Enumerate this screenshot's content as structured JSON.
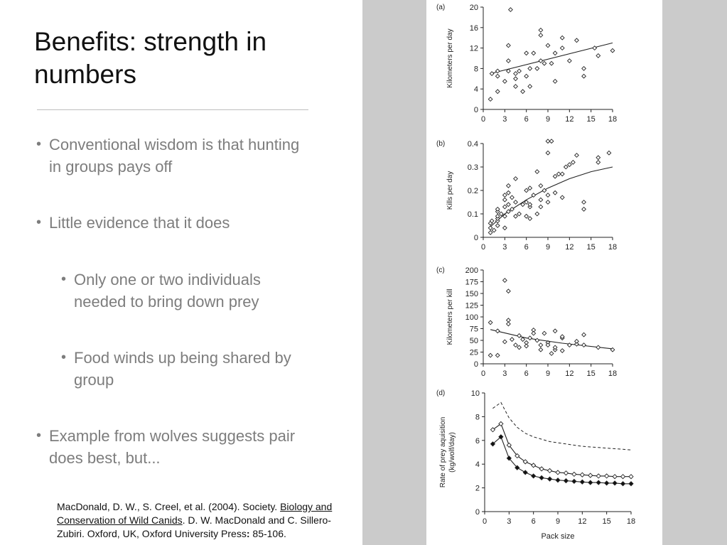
{
  "slide": {
    "title": "Benefits: strength in numbers",
    "bullets": [
      {
        "level": 1,
        "text": "Conventional wisdom is that hunting in groups pays off"
      },
      {
        "level": 1,
        "text": "Little evidence that it does"
      },
      {
        "level": 2,
        "text": "Only one or two individuals needed to bring down prey"
      },
      {
        "level": 2,
        "text": "Food winds up being shared by group"
      },
      {
        "level": 1,
        "text": "Example from wolves suggests pair does best, but..."
      }
    ],
    "bullet_glyph": "•",
    "citation": {
      "pre": "MacDonald, D. W., S. Creel, et al. (2004). Society. ",
      "book": "Biology and Conservation of Wild Canids",
      "post_a": ". D. W. MacDonald and C. Sillero-Zubiri. Oxford, UK, Oxford University Press",
      "colon": ":",
      "post_b": " 85-106."
    }
  },
  "chart_data": [
    {
      "panel": "(a)",
      "type": "scatter",
      "xlabel": "",
      "ylabel": "Kilometers per day",
      "xlim": [
        0,
        18
      ],
      "ylim": [
        0,
        20
      ],
      "xticks": [
        0,
        3,
        6,
        9,
        12,
        15,
        18
      ],
      "yticks": [
        0,
        4,
        8,
        12,
        16,
        20
      ],
      "points": [
        [
          1,
          2
        ],
        [
          1.2,
          7
        ],
        [
          2,
          6.5
        ],
        [
          2,
          7.5
        ],
        [
          2,
          3.5
        ],
        [
          3,
          5.5
        ],
        [
          3.5,
          7.5
        ],
        [
          3.5,
          9.5
        ],
        [
          3.5,
          12.5
        ],
        [
          3.8,
          19.5
        ],
        [
          4.5,
          7
        ],
        [
          4.5,
          6
        ],
        [
          4.5,
          4.5
        ],
        [
          5,
          7.5
        ],
        [
          5.5,
          3.5
        ],
        [
          6,
          6.5
        ],
        [
          6,
          11
        ],
        [
          6.5,
          8
        ],
        [
          6.5,
          4.5
        ],
        [
          7,
          11
        ],
        [
          7.5,
          8
        ],
        [
          8,
          9.5
        ],
        [
          8,
          14.5
        ],
        [
          8,
          15.5
        ],
        [
          8.5,
          9
        ],
        [
          9,
          12.5
        ],
        [
          9.5,
          9
        ],
        [
          10,
          11
        ],
        [
          10,
          5.5
        ],
        [
          11,
          12
        ],
        [
          11,
          14
        ],
        [
          12,
          9.5
        ],
        [
          13,
          13.5
        ],
        [
          14,
          8
        ],
        [
          14,
          6.5
        ],
        [
          15.5,
          12
        ],
        [
          16,
          10.5
        ],
        [
          18,
          11.5
        ]
      ],
      "fit": [
        [
          1,
          7
        ],
        [
          18,
          13
        ]
      ]
    },
    {
      "panel": "(b)",
      "type": "scatter",
      "xlabel": "",
      "ylabel": "Kills per day",
      "xlim": [
        0,
        18
      ],
      "ylim": [
        0,
        0.4
      ],
      "xticks": [
        0,
        3,
        6,
        9,
        12,
        15,
        18
      ],
      "yticks": [
        0,
        0.1,
        0.2,
        0.3,
        0.4
      ],
      "points": [
        [
          1,
          0.02
        ],
        [
          1,
          0.04
        ],
        [
          1,
          0.06
        ],
        [
          1.2,
          0.07
        ],
        [
          1.5,
          0.03
        ],
        [
          2,
          0.05
        ],
        [
          2,
          0.07
        ],
        [
          2,
          0.08
        ],
        [
          2,
          0.09
        ],
        [
          2,
          0.11
        ],
        [
          2,
          0.12
        ],
        [
          2.5,
          0.1
        ],
        [
          3,
          0.04
        ],
        [
          3,
          0.09
        ],
        [
          3,
          0.13
        ],
        [
          3,
          0.16
        ],
        [
          3,
          0.18
        ],
        [
          3.5,
          0.11
        ],
        [
          3.5,
          0.14
        ],
        [
          3.5,
          0.19
        ],
        [
          3.5,
          0.22
        ],
        [
          4,
          0.12
        ],
        [
          4,
          0.17
        ],
        [
          4.5,
          0.09
        ],
        [
          4.5,
          0.15
        ],
        [
          4.5,
          0.25
        ],
        [
          5,
          0.1
        ],
        [
          5.5,
          0.14
        ],
        [
          6,
          0.09
        ],
        [
          6,
          0.15
        ],
        [
          6,
          0.2
        ],
        [
          6.5,
          0.08
        ],
        [
          6.5,
          0.13
        ],
        [
          6.5,
          0.14
        ],
        [
          6.5,
          0.21
        ],
        [
          7,
          0.18
        ],
        [
          7.5,
          0.1
        ],
        [
          7.5,
          0.28
        ],
        [
          8,
          0.13
        ],
        [
          8,
          0.16
        ],
        [
          8,
          0.22
        ],
        [
          8.5,
          0.2
        ],
        [
          9,
          0.15
        ],
        [
          9,
          0.18
        ],
        [
          9,
          0.36
        ],
        [
          9,
          0.41
        ],
        [
          9.5,
          0.41
        ],
        [
          10,
          0.19
        ],
        [
          10,
          0.26
        ],
        [
          10.5,
          0.27
        ],
        [
          11,
          0.17
        ],
        [
          11,
          0.27
        ],
        [
          11.5,
          0.3
        ],
        [
          12,
          0.31
        ],
        [
          12.5,
          0.32
        ],
        [
          13,
          0.35
        ],
        [
          14,
          0.12
        ],
        [
          14,
          0.15
        ],
        [
          16,
          0.32
        ],
        [
          16,
          0.34
        ],
        [
          17.5,
          0.36
        ]
      ],
      "fit": [
        [
          1,
          0.045
        ],
        [
          3,
          0.1
        ],
        [
          6,
          0.16
        ],
        [
          9,
          0.21
        ],
        [
          12,
          0.25
        ],
        [
          15,
          0.28
        ],
        [
          18,
          0.3
        ]
      ]
    },
    {
      "panel": "(c)",
      "type": "scatter",
      "xlabel": "",
      "ylabel": "Kilometers per kill",
      "xlim": [
        0,
        18
      ],
      "ylim": [
        0,
        200
      ],
      "xticks": [
        0,
        3,
        6,
        9,
        12,
        15,
        18
      ],
      "yticks": [
        0,
        25,
        50,
        75,
        100,
        125,
        150,
        175,
        200
      ],
      "points": [
        [
          1,
          18
        ],
        [
          1,
          88
        ],
        [
          2,
          70
        ],
        [
          2,
          18
        ],
        [
          3,
          47
        ],
        [
          3,
          178
        ],
        [
          3.5,
          155
        ],
        [
          3.5,
          93
        ],
        [
          3.5,
          85
        ],
        [
          4,
          52
        ],
        [
          4.5,
          40
        ],
        [
          5,
          60
        ],
        [
          5,
          35
        ],
        [
          5.5,
          52
        ],
        [
          6,
          45
        ],
        [
          6,
          38
        ],
        [
          6.5,
          55
        ],
        [
          7,
          72
        ],
        [
          7,
          65
        ],
        [
          7.5,
          50
        ],
        [
          8,
          40
        ],
        [
          8,
          30
        ],
        [
          8.5,
          65
        ],
        [
          9,
          45
        ],
        [
          9,
          40
        ],
        [
          9.5,
          22
        ],
        [
          10,
          70
        ],
        [
          10,
          30
        ],
        [
          10,
          35
        ],
        [
          11,
          55
        ],
        [
          11,
          58
        ],
        [
          11,
          28
        ],
        [
          12,
          40
        ],
        [
          13,
          42
        ],
        [
          13,
          48
        ],
        [
          14,
          40
        ],
        [
          14,
          62
        ],
        [
          16,
          35
        ],
        [
          18,
          30
        ]
      ],
      "fit": [
        [
          1,
          73
        ],
        [
          6,
          55
        ],
        [
          11,
          44
        ],
        [
          18,
          32
        ]
      ]
    },
    {
      "panel": "(d)",
      "type": "line",
      "xlabel": "Pack size",
      "ylabel": "Rate of prey aquisition (kg/wolf/day)",
      "xlim": [
        0,
        18
      ],
      "ylim": [
        0,
        10
      ],
      "xticks": [
        0,
        3,
        6,
        9,
        12,
        15,
        18
      ],
      "yticks": [
        0,
        2,
        4,
        6,
        8,
        10
      ],
      "series": [
        {
          "style": "dashed",
          "values": [
            [
              1,
              8.7
            ],
            [
              2,
              9.2
            ],
            [
              3,
              7.9
            ],
            [
              4,
              7.1
            ],
            [
              5,
              6.6
            ],
            [
              6,
              6.3
            ],
            [
              7,
              6.1
            ],
            [
              8,
              5.9
            ],
            [
              9,
              5.8
            ],
            [
              10,
              5.7
            ],
            [
              11,
              5.6
            ],
            [
              12,
              5.5
            ],
            [
              13,
              5.45
            ],
            [
              14,
              5.4
            ],
            [
              15,
              5.35
            ],
            [
              16,
              5.3
            ],
            [
              17,
              5.25
            ],
            [
              18,
              5.2
            ]
          ]
        },
        {
          "style": "open-diamond",
          "values": [
            [
              1,
              6.9
            ],
            [
              2,
              7.4
            ],
            [
              3,
              5.6
            ],
            [
              4,
              4.7
            ],
            [
              5,
              4.2
            ],
            [
              6,
              3.9
            ],
            [
              7,
              3.6
            ],
            [
              8,
              3.45
            ],
            [
              9,
              3.3
            ],
            [
              10,
              3.25
            ],
            [
              11,
              3.15
            ],
            [
              12,
              3.1
            ],
            [
              13,
              3.05
            ],
            [
              14,
              3.0
            ],
            [
              15,
              3.0
            ],
            [
              16,
              2.95
            ],
            [
              17,
              2.95
            ],
            [
              18,
              2.95
            ]
          ]
        },
        {
          "style": "filled-diamond",
          "values": [
            [
              1,
              5.7
            ],
            [
              2,
              6.3
            ],
            [
              3,
              4.5
            ],
            [
              4,
              3.7
            ],
            [
              5,
              3.3
            ],
            [
              6,
              3.0
            ],
            [
              7,
              2.85
            ],
            [
              8,
              2.75
            ],
            [
              9,
              2.65
            ],
            [
              10,
              2.6
            ],
            [
              11,
              2.55
            ],
            [
              12,
              2.5
            ],
            [
              13,
              2.45
            ],
            [
              14,
              2.45
            ],
            [
              15,
              2.4
            ],
            [
              16,
              2.4
            ],
            [
              17,
              2.35
            ],
            [
              18,
              2.35
            ]
          ]
        }
      ]
    }
  ]
}
